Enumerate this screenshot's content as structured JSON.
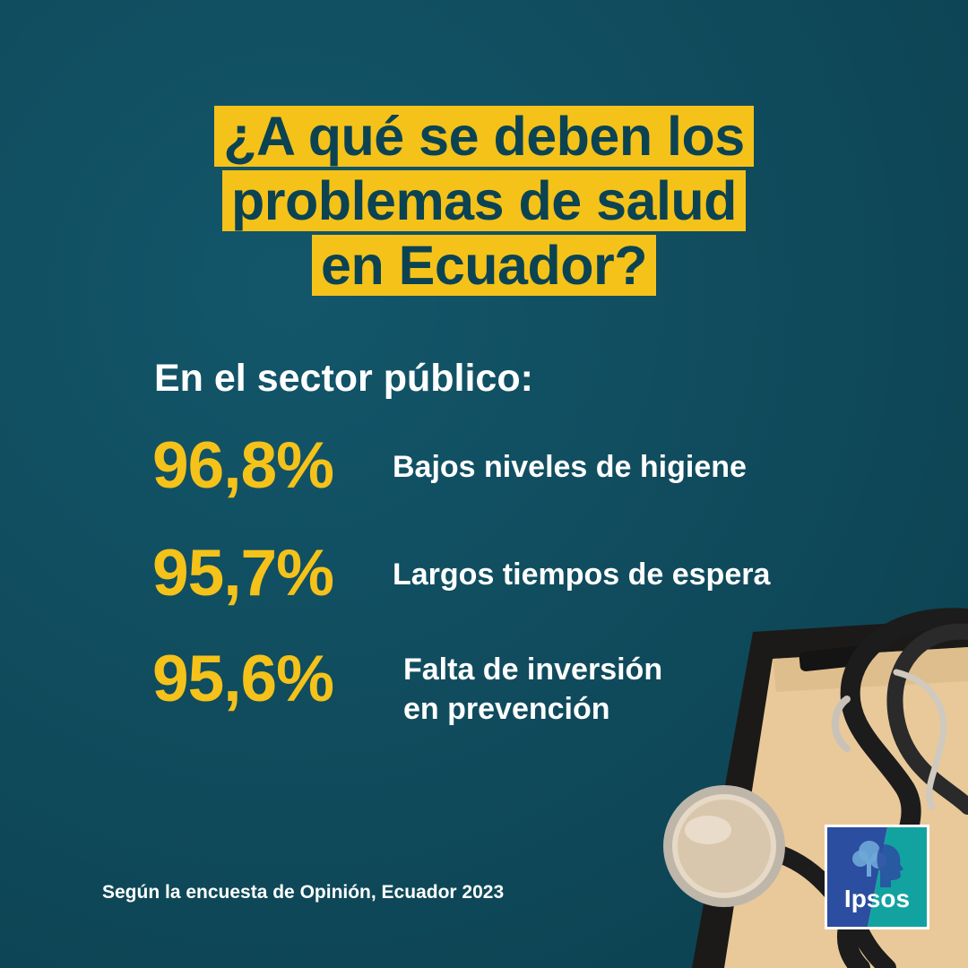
{
  "title": {
    "lines": [
      "¿A qué se deben los",
      "problemas de salud",
      "en Ecuador?"
    ]
  },
  "subtitle": "En el sector público:",
  "stats": [
    {
      "value": "96,8%",
      "label_lines": [
        "Bajos niveles de higiene"
      ]
    },
    {
      "value": "95,7%",
      "label_lines": [
        "Largos tiempos de espera"
      ]
    },
    {
      "value": "95,6%",
      "label_lines": [
        "Falta de inversión",
        "en prevención"
      ]
    }
  ],
  "footnote": "Según la encuesta de Opinión, Ecuador 2023",
  "logo": {
    "text": "Ipsos",
    "icon": "ipsos-head-tree-logo"
  },
  "illustration": {
    "icon": "stethoscope-clipboard-illustration"
  },
  "colors": {
    "background": "#0f4a5b",
    "accent": "#f5c21a",
    "text": "#ffffff",
    "logo_blue": "#2b4ea0",
    "logo_teal": "#12a3a0"
  }
}
